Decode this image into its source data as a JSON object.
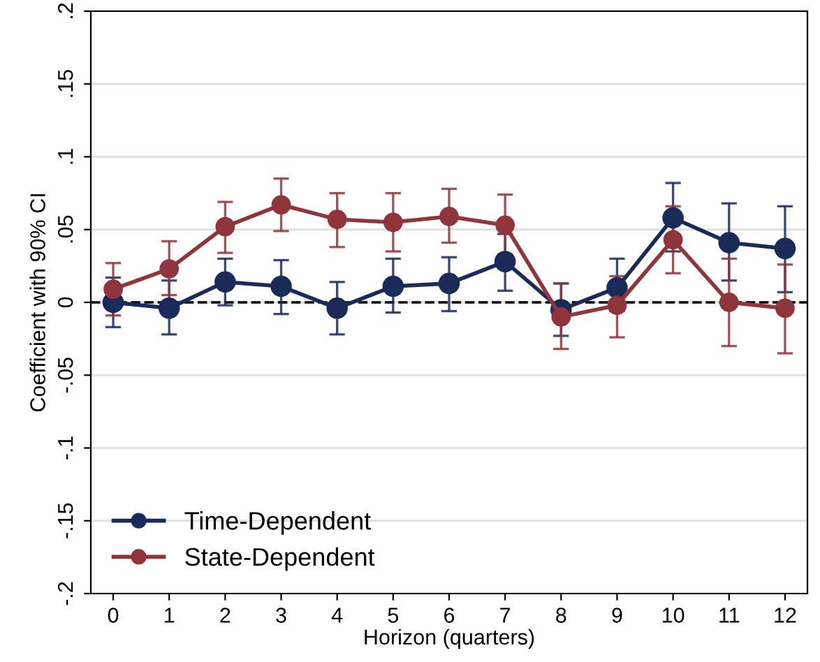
{
  "chart_data": {
    "type": "line",
    "xlabel": "Horizon (quarters)",
    "ylabel": "Coefficient with 90% CI",
    "x": [
      0,
      1,
      2,
      3,
      4,
      5,
      6,
      7,
      8,
      9,
      10,
      11,
      12
    ],
    "xlim": [
      -0.4,
      12.4
    ],
    "xticks": [
      0,
      1,
      2,
      3,
      4,
      5,
      6,
      7,
      8,
      9,
      10,
      11,
      12
    ],
    "ylim": [
      -0.2,
      0.2
    ],
    "yticks": [
      {
        "value": -0.2,
        "label": "-.2"
      },
      {
        "value": -0.15,
        "label": "-.15"
      },
      {
        "value": -0.1,
        "label": "-.1"
      },
      {
        "value": -0.05,
        "label": "-.05"
      },
      0,
      {
        "value": 0.05,
        "label": ".05"
      },
      {
        "value": 0.1,
        "label": ".1"
      },
      {
        "value": 0.15,
        "label": ".15"
      },
      {
        "value": 0.2,
        "label": ".2"
      }
    ],
    "grid": "y",
    "legend": "bottom left",
    "marker": "circle",
    "line_style": "solid",
    "ref_lines": [
      {
        "axis": "y",
        "value": 0,
        "label": null,
        "color": "#000000",
        "line_style": "dashed"
      }
    ],
    "series": [
      {
        "name": "Time-Dependent",
        "color": "#1a2b5a",
        "values": [
          0.0,
          -0.004,
          0.014,
          0.011,
          -0.004,
          0.011,
          0.013,
          0.028,
          -0.005,
          0.01,
          0.058,
          0.041,
          0.037
        ],
        "errors": [
          [
            -0.017,
            0.017
          ],
          [
            -0.022,
            0.015
          ],
          [
            -0.002,
            0.03
          ],
          [
            -0.008,
            0.029
          ],
          [
            -0.022,
            0.014
          ],
          [
            -0.007,
            0.03
          ],
          [
            -0.006,
            0.031
          ],
          [
            0.008,
            0.047
          ],
          [
            -0.023,
            0.013
          ],
          [
            -0.006,
            0.03
          ],
          [
            0.035,
            0.082
          ],
          [
            0.015,
            0.068
          ],
          [
            0.007,
            0.066
          ]
        ]
      },
      {
        "name": "State-Dependent",
        "color": "#90353b",
        "values": [
          0.009,
          0.023,
          0.052,
          0.067,
          0.057,
          0.055,
          0.059,
          0.053,
          -0.01,
          -0.002,
          0.043,
          0.0,
          -0.004
        ],
        "errors": [
          [
            -0.009,
            0.027
          ],
          [
            0.005,
            0.042
          ],
          [
            0.034,
            0.069
          ],
          [
            0.049,
            0.085
          ],
          [
            0.038,
            0.075
          ],
          [
            0.035,
            0.075
          ],
          [
            0.041,
            0.078
          ],
          [
            0.033,
            0.074
          ],
          [
            -0.032,
            0.013
          ],
          [
            -0.024,
            0.018
          ],
          [
            0.02,
            0.066
          ],
          [
            -0.03,
            0.03
          ],
          [
            -0.035,
            0.026
          ]
        ]
      }
    ]
  }
}
